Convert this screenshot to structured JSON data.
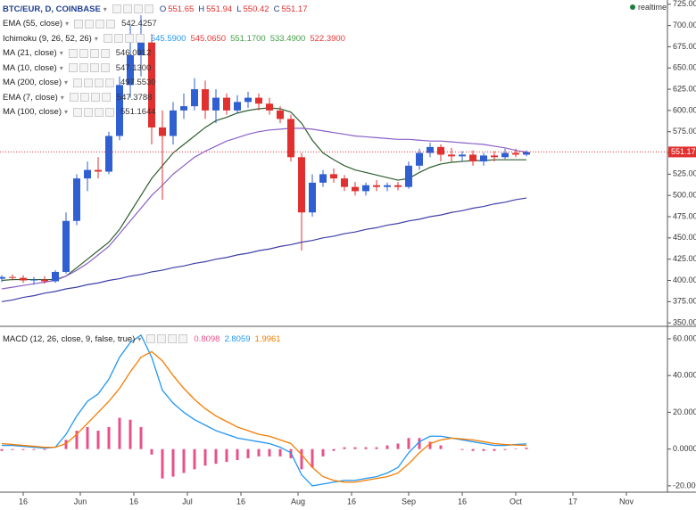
{
  "header": {
    "symbol": "BTC/EUR, D, COINBASE",
    "ohlc": [
      [
        "O",
        "551.65"
      ],
      [
        "H",
        "551.94"
      ],
      [
        "L",
        "550.42"
      ],
      [
        "C",
        "551.17"
      ]
    ],
    "realtime": "realtime"
  },
  "chart_data": [
    {
      "type": "candlestick",
      "x": [
        "May 10",
        "May 13",
        "May 16",
        "May 19",
        "May 22",
        "May 25",
        "May 28",
        "May 31",
        "Jun 3",
        "Jun 6",
        "Jun 9",
        "Jun 12",
        "Jun 15",
        "Jun 18",
        "Jun 21",
        "Jun 24",
        "Jun 27",
        "Jun 30",
        "Jul 3",
        "Jul 6",
        "Jul 9",
        "Jul 12",
        "Jul 15",
        "Jul 18",
        "Jul 21",
        "Jul 24",
        "Jul 27",
        "Jul 30",
        "Aug 2",
        "Aug 5",
        "Aug 8",
        "Aug 11",
        "Aug 14",
        "Aug 17",
        "Aug 20",
        "Aug 23",
        "Aug 26",
        "Aug 29",
        "Sep 1",
        "Sep 4",
        "Sep 7",
        "Sep 10",
        "Sep 13",
        "Sep 16",
        "Sep 19",
        "Sep 22",
        "Sep 25",
        "Sep 28",
        "Oct 1",
        "Oct 4"
      ],
      "open": [
        402,
        404,
        403,
        400,
        401,
        399,
        410,
        470,
        520,
        530,
        528,
        570,
        630,
        665,
        680,
        580,
        570,
        600,
        605,
        625,
        600,
        615,
        600,
        610,
        615,
        608,
        600,
        590,
        545,
        480,
        515,
        525,
        520,
        510,
        505,
        512,
        510,
        512,
        510,
        535,
        550,
        557,
        548,
        546,
        548,
        540,
        547,
        545,
        550,
        548
      ],
      "high": [
        406,
        407,
        406,
        404,
        405,
        412,
        480,
        525,
        540,
        545,
        575,
        640,
        700,
        712,
        690,
        600,
        610,
        620,
        638,
        635,
        625,
        620,
        618,
        622,
        620,
        615,
        605,
        595,
        550,
        525,
        530,
        532,
        524,
        516,
        515,
        518,
        515,
        516,
        540,
        555,
        562,
        560,
        556,
        552,
        553,
        550,
        552,
        555,
        555,
        553
      ],
      "low": [
        398,
        400,
        397,
        395,
        396,
        397,
        408,
        465,
        505,
        520,
        525,
        565,
        615,
        640,
        560,
        495,
        560,
        590,
        600,
        590,
        585,
        595,
        596,
        603,
        600,
        595,
        585,
        540,
        435,
        475,
        510,
        515,
        505,
        500,
        500,
        505,
        505,
        506,
        508,
        530,
        545,
        540,
        540,
        540,
        535,
        535,
        540,
        543,
        545,
        546
      ],
      "close": [
        404,
        403,
        400,
        401,
        399,
        410,
        470,
        520,
        530,
        528,
        570,
        630,
        665,
        680,
        580,
        570,
        600,
        605,
        625,
        600,
        615,
        600,
        610,
        615,
        608,
        600,
        590,
        545,
        480,
        515,
        525,
        520,
        510,
        505,
        512,
        510,
        512,
        510,
        535,
        550,
        557,
        548,
        546,
        548,
        540,
        547,
        545,
        550,
        548,
        551
      ],
      "up_color": "#2f5fd0",
      "down_color": "#e0302f",
      "series": [
        {
          "name": "EMA (55, close)",
          "readout": [
            "542.4257"
          ],
          "color": "#2e5e2e",
          "values": [
            400,
            401,
            401,
            401,
            401,
            401,
            405,
            415,
            425,
            435,
            445,
            460,
            480,
            500,
            520,
            535,
            550,
            560,
            570,
            580,
            588,
            592,
            597,
            600,
            602,
            603,
            602,
            598,
            585,
            565,
            550,
            542,
            535,
            530,
            527,
            524,
            521,
            518,
            520,
            527,
            533,
            537,
            539,
            540,
            541,
            541,
            542,
            542,
            542,
            542
          ]
        },
        {
          "name": "Ichimoku (9, 26, 52, 26)",
          "readout": [
            "545.5900",
            "545.0650",
            "551.1700",
            "533.4900",
            "522.3900"
          ],
          "readout_colors": [
            "#2196f3",
            "#e53935",
            "#43a047",
            "#43a047",
            "#e53935"
          ]
        },
        {
          "name": "MA (21, close)",
          "readout": [
            "546.0912"
          ]
        },
        {
          "name": "MA (10, close)",
          "readout": [
            "547.1300"
          ]
        },
        {
          "name": "MA (200, close)",
          "readout": [
            "497.5530"
          ],
          "color": "#3f3fa8",
          "values": [
            375,
            377,
            380,
            382,
            385,
            387,
            390,
            392,
            395,
            397,
            400,
            402,
            405,
            407,
            410,
            412,
            415,
            417,
            420,
            422,
            425,
            427,
            430,
            432,
            435,
            437,
            440,
            442,
            445,
            447,
            450,
            452,
            455,
            457,
            460,
            462,
            465,
            467,
            470,
            472,
            475,
            477,
            480,
            482,
            485,
            487,
            490,
            492,
            495,
            497
          ]
        },
        {
          "name": "EMA (7, close)",
          "readout": [
            "547.3788"
          ]
        },
        {
          "name": "MA (100, close)",
          "readout": [
            "551.1644"
          ],
          "color": "#8a5fc8",
          "values": [
            390,
            392,
            394,
            396,
            398,
            400,
            405,
            412,
            420,
            430,
            440,
            455,
            470,
            485,
            500,
            512,
            525,
            535,
            545,
            552,
            558,
            564,
            568,
            572,
            575,
            577,
            578,
            579,
            579,
            578,
            576,
            574,
            572,
            570,
            569,
            568,
            567,
            566,
            566,
            565,
            564,
            564,
            563,
            562,
            561,
            560,
            558,
            556,
            553,
            551
          ]
        }
      ],
      "last_price": 551.17,
      "last_color": "#e0302f",
      "ylim": [
        347,
        730
      ],
      "yticks": [
        {
          "value": 350,
          "label": "350.00"
        },
        {
          "value": 375,
          "label": "375.00"
        },
        {
          "value": 400,
          "label": "400.00"
        },
        {
          "value": 425,
          "label": "425.00"
        },
        {
          "value": 450,
          "label": "450.00"
        },
        {
          "value": 475,
          "label": "475.00"
        },
        {
          "value": 500,
          "label": "500.00"
        },
        {
          "value": 525,
          "label": "525.00"
        },
        {
          "value": 550,
          "label": "550.00"
        },
        {
          "value": 575,
          "label": "575.00"
        },
        {
          "value": 600,
          "label": "600.00"
        },
        {
          "value": 625,
          "label": "625.00"
        },
        {
          "value": 650,
          "label": "650.00"
        },
        {
          "value": 675,
          "label": "675.00"
        },
        {
          "value": 700,
          "label": "700.00"
        },
        {
          "value": 725,
          "label": "725.00"
        }
      ]
    },
    {
      "type": "line",
      "title": "MACD (12, 26, close, 9, false, true)",
      "x": [
        "May 10",
        "May 13",
        "May 16",
        "May 19",
        "May 22",
        "May 25",
        "May 28",
        "May 31",
        "Jun 3",
        "Jun 6",
        "Jun 9",
        "Jun 12",
        "Jun 15",
        "Jun 18",
        "Jun 21",
        "Jun 24",
        "Jun 27",
        "Jun 30",
        "Jul 3",
        "Jul 6",
        "Jul 9",
        "Jul 12",
        "Jul 15",
        "Jul 18",
        "Jul 21",
        "Jul 24",
        "Jul 27",
        "Jul 30",
        "Aug 2",
        "Aug 5",
        "Aug 8",
        "Aug 11",
        "Aug 14",
        "Aug 17",
        "Aug 20",
        "Aug 23",
        "Aug 26",
        "Aug 29",
        "Sep 1",
        "Sep 4",
        "Sep 7",
        "Sep 10",
        "Sep 13",
        "Sep 16",
        "Sep 19",
        "Sep 22",
        "Sep 25",
        "Sep 28",
        "Oct 1",
        "Oct 4"
      ],
      "series": [
        {
          "type": "bar",
          "readout": [
            "0.8098"
          ],
          "color": "#e8508a",
          "values": [
            -1,
            -0.5,
            -0.5,
            -0.5,
            -0.5,
            0,
            5,
            10,
            12,
            10,
            12,
            17,
            16,
            12,
            -3,
            -16,
            -15,
            -13,
            -11,
            -9,
            -8,
            -7,
            -6,
            -5,
            -4,
            -4,
            -4,
            -5,
            -11,
            -10,
            -4,
            -1,
            1,
            1,
            1,
            1,
            2,
            3,
            6,
            6,
            4,
            2,
            0,
            -0.5,
            -1,
            -1,
            -1,
            -0.5,
            0.3,
            0.8
          ]
        },
        {
          "type": "line",
          "readout": [
            "2.8059"
          ],
          "color": "#2196f3",
          "values": [
            2,
            2,
            1.5,
            1,
            0.5,
            1,
            8,
            18,
            26,
            30,
            38,
            50,
            58,
            62,
            50,
            32,
            25,
            20,
            16,
            13,
            10,
            8,
            6,
            5,
            4,
            3,
            1,
            -2,
            -14,
            -20,
            -19,
            -18,
            -17,
            -17,
            -16,
            -15,
            -13,
            -10,
            -2,
            4,
            7,
            7,
            6,
            5,
            4,
            3,
            2,
            2,
            2.5,
            2.8
          ]
        },
        {
          "type": "line",
          "readout": [
            "1.9961"
          ],
          "color": "#f57c00",
          "values": [
            3,
            2.5,
            2,
            1.5,
            1,
            1,
            3,
            8,
            14,
            20,
            26,
            33,
            42,
            50,
            53,
            48,
            40,
            33,
            27,
            22,
            18,
            15,
            12,
            10,
            8,
            7,
            5,
            3,
            -3,
            -10,
            -15,
            -17,
            -18,
            -18,
            -17,
            -16,
            -15,
            -13,
            -8,
            -2,
            3,
            5,
            6,
            5.5,
            5,
            4,
            3,
            2.5,
            2.2,
            2.0
          ]
        }
      ],
      "ylim": [
        -21.5,
        65.8
      ],
      "yticks": [
        {
          "value": -20,
          "label": "-20.0000"
        },
        {
          "value": 0,
          "label": "0.0000"
        },
        {
          "value": 20,
          "label": "20.0000"
        },
        {
          "value": 40,
          "label": "40.0000"
        },
        {
          "value": 60,
          "label": "60.0000"
        }
      ],
      "xticks": [
        {
          "value": "May 16",
          "label": "16"
        },
        {
          "value": "Jun 1",
          "label": "Jun"
        },
        {
          "value": "Jun 16",
          "label": "16"
        },
        {
          "value": "Jul 1",
          "label": "Jul"
        },
        {
          "value": "Jul 16",
          "label": "16"
        },
        {
          "value": "Aug 1",
          "label": "Aug"
        },
        {
          "value": "Aug 16",
          "label": "16"
        },
        {
          "value": "Sep 1",
          "label": "Sep"
        },
        {
          "value": "Sep 16",
          "label": "16"
        },
        {
          "value": "Oct 1",
          "label": "Oct"
        },
        {
          "value": "Oct 17",
          "label": "17"
        },
        {
          "value": "Nov 1",
          "label": "Nov"
        }
      ]
    }
  ]
}
